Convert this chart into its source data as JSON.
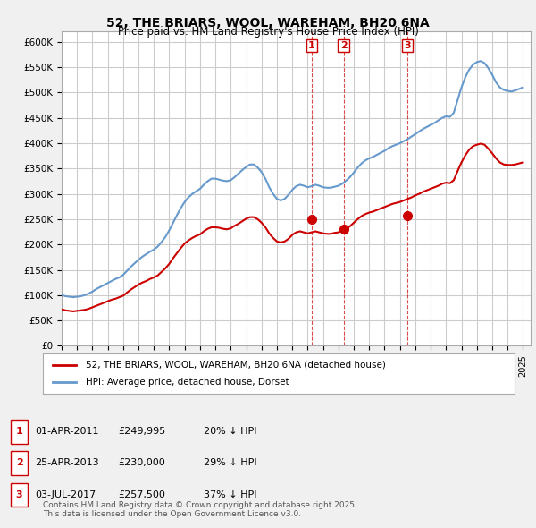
{
  "title": "52, THE BRIARS, WOOL, WAREHAM, BH20 6NA",
  "subtitle": "Price paid vs. HM Land Registry's House Price Index (HPI)",
  "ylabel_ticks": [
    "£0",
    "£50K",
    "£100K",
    "£150K",
    "£200K",
    "£250K",
    "£300K",
    "£350K",
    "£400K",
    "£450K",
    "£500K",
    "£550K",
    "£600K"
  ],
  "ylim": [
    0,
    620000
  ],
  "xlim_start": 1995.0,
  "xlim_end": 2025.5,
  "background_color": "#f0f0f0",
  "plot_bg_color": "#ffffff",
  "grid_color": "#cccccc",
  "red_line_color": "#cc0000",
  "blue_line_color": "#6699cc",
  "hpi_x": [
    1995.0,
    1995.25,
    1995.5,
    1995.75,
    1996.0,
    1996.25,
    1996.5,
    1996.75,
    1997.0,
    1997.25,
    1997.5,
    1997.75,
    1998.0,
    1998.25,
    1998.5,
    1998.75,
    1999.0,
    1999.25,
    1999.5,
    1999.75,
    2000.0,
    2000.25,
    2000.5,
    2000.75,
    2001.0,
    2001.25,
    2001.5,
    2001.75,
    2002.0,
    2002.25,
    2002.5,
    2002.75,
    2003.0,
    2003.25,
    2003.5,
    2003.75,
    2004.0,
    2004.25,
    2004.5,
    2004.75,
    2005.0,
    2005.25,
    2005.5,
    2005.75,
    2006.0,
    2006.25,
    2006.5,
    2006.75,
    2007.0,
    2007.25,
    2007.5,
    2007.75,
    2008.0,
    2008.25,
    2008.5,
    2008.75,
    2009.0,
    2009.25,
    2009.5,
    2009.75,
    2010.0,
    2010.25,
    2010.5,
    2010.75,
    2011.0,
    2011.25,
    2011.5,
    2011.75,
    2012.0,
    2012.25,
    2012.5,
    2012.75,
    2013.0,
    2013.25,
    2013.5,
    2013.75,
    2014.0,
    2014.25,
    2014.5,
    2014.75,
    2015.0,
    2015.25,
    2015.5,
    2015.75,
    2016.0,
    2016.25,
    2016.5,
    2016.75,
    2017.0,
    2017.25,
    2017.5,
    2017.75,
    2018.0,
    2018.25,
    2018.5,
    2018.75,
    2019.0,
    2019.25,
    2019.5,
    2019.75,
    2020.0,
    2020.25,
    2020.5,
    2020.75,
    2021.0,
    2021.25,
    2021.5,
    2021.75,
    2022.0,
    2022.25,
    2022.5,
    2022.75,
    2023.0,
    2023.25,
    2023.5,
    2023.75,
    2024.0,
    2024.25,
    2024.5,
    2024.75,
    2025.0
  ],
  "hpi_y": [
    100000,
    98000,
    97000,
    96000,
    97000,
    98000,
    100000,
    103000,
    107000,
    112000,
    116000,
    120000,
    124000,
    128000,
    132000,
    135000,
    140000,
    148000,
    156000,
    163000,
    170000,
    176000,
    181000,
    186000,
    190000,
    196000,
    205000,
    215000,
    228000,
    243000,
    258000,
    272000,
    284000,
    293000,
    300000,
    305000,
    310000,
    318000,
    325000,
    330000,
    330000,
    328000,
    326000,
    325000,
    327000,
    333000,
    340000,
    347000,
    353000,
    358000,
    358000,
    352000,
    343000,
    330000,
    313000,
    300000,
    290000,
    287000,
    290000,
    298000,
    308000,
    315000,
    318000,
    316000,
    313000,
    315000,
    318000,
    316000,
    313000,
    312000,
    312000,
    314000,
    316000,
    320000,
    326000,
    333000,
    342000,
    352000,
    360000,
    366000,
    370000,
    373000,
    377000,
    381000,
    385000,
    390000,
    394000,
    397000,
    400000,
    404000,
    408000,
    413000,
    418000,
    423000,
    428000,
    432000,
    436000,
    440000,
    445000,
    450000,
    453000,
    452000,
    460000,
    485000,
    510000,
    530000,
    545000,
    555000,
    560000,
    562000,
    558000,
    548000,
    535000,
    520000,
    510000,
    505000,
    503000,
    502000,
    504000,
    507000,
    510000
  ],
  "red_x": [
    1995.0,
    1995.25,
    1995.5,
    1995.75,
    1996.0,
    1996.25,
    1996.5,
    1996.75,
    1997.0,
    1997.25,
    1997.5,
    1997.75,
    1998.0,
    1998.25,
    1998.5,
    1998.75,
    1999.0,
    1999.25,
    1999.5,
    1999.75,
    2000.0,
    2000.25,
    2000.5,
    2000.75,
    2001.0,
    2001.25,
    2001.5,
    2001.75,
    2002.0,
    2002.25,
    2002.5,
    2002.75,
    2003.0,
    2003.25,
    2003.5,
    2003.75,
    2004.0,
    2004.25,
    2004.5,
    2004.75,
    2005.0,
    2005.25,
    2005.5,
    2005.75,
    2006.0,
    2006.25,
    2006.5,
    2006.75,
    2007.0,
    2007.25,
    2007.5,
    2007.75,
    2008.0,
    2008.25,
    2008.5,
    2008.75,
    2009.0,
    2009.25,
    2009.5,
    2009.75,
    2010.0,
    2010.25,
    2010.5,
    2010.75,
    2011.0,
    2011.25,
    2011.5,
    2011.75,
    2012.0,
    2012.25,
    2012.5,
    2012.75,
    2013.0,
    2013.25,
    2013.5,
    2013.75,
    2014.0,
    2014.25,
    2014.5,
    2014.75,
    2015.0,
    2015.25,
    2015.5,
    2015.75,
    2016.0,
    2016.25,
    2016.5,
    2016.75,
    2017.0,
    2017.25,
    2017.5,
    2017.75,
    2018.0,
    2018.25,
    2018.5,
    2018.75,
    2019.0,
    2019.25,
    2019.5,
    2019.75,
    2020.0,
    2020.25,
    2020.5,
    2020.75,
    2021.0,
    2021.25,
    2021.5,
    2021.75,
    2022.0,
    2022.25,
    2022.5,
    2022.75,
    2023.0,
    2023.25,
    2023.5,
    2023.75,
    2024.0,
    2024.25,
    2024.5,
    2024.75,
    2025.0
  ],
  "red_y": [
    72000,
    70000,
    69000,
    68000,
    69000,
    70000,
    71000,
    73000,
    76000,
    79000,
    82000,
    85000,
    88000,
    91000,
    93000,
    96000,
    99000,
    105000,
    111000,
    116000,
    121000,
    125000,
    128000,
    132000,
    135000,
    139000,
    146000,
    153000,
    162000,
    173000,
    183000,
    193000,
    202000,
    208000,
    213000,
    217000,
    220000,
    226000,
    231000,
    234000,
    234000,
    233000,
    231000,
    230000,
    232000,
    237000,
    241000,
    246000,
    251000,
    254000,
    254000,
    250000,
    243000,
    234000,
    222000,
    213000,
    206000,
    204000,
    206000,
    211000,
    219000,
    224000,
    226000,
    224000,
    222000,
    224000,
    226000,
    224000,
    222000,
    221000,
    221000,
    223000,
    224000,
    228000,
    231000,
    236000,
    243000,
    250000,
    256000,
    260000,
    263000,
    265000,
    268000,
    271000,
    274000,
    277000,
    280000,
    282000,
    284000,
    287000,
    290000,
    293000,
    297000,
    300000,
    304000,
    307000,
    310000,
    313000,
    316000,
    320000,
    322000,
    321000,
    327000,
    345000,
    362000,
    376000,
    387000,
    394000,
    397000,
    399000,
    397000,
    389000,
    380000,
    370000,
    362000,
    358000,
    357000,
    357000,
    358000,
    360000,
    362000
  ],
  "sale1_x": 2011.25,
  "sale1_y": 249995,
  "sale1_label": "1",
  "sale2_x": 2013.33,
  "sale2_y": 230000,
  "sale2_label": "2",
  "sale3_x": 2017.5,
  "sale3_y": 257500,
  "sale3_label": "3",
  "legend_label_red": "52, THE BRIARS, WOOL, WAREHAM, BH20 6NA (detached house)",
  "legend_label_blue": "HPI: Average price, detached house, Dorset",
  "table_data": [
    {
      "num": "1",
      "date": "01-APR-2011",
      "price": "£249,995",
      "pct": "20% ↓ HPI"
    },
    {
      "num": "2",
      "date": "25-APR-2013",
      "price": "£230,000",
      "pct": "29% ↓ HPI"
    },
    {
      "num": "3",
      "date": "03-JUL-2017",
      "price": "£257,500",
      "pct": "37% ↓ HPI"
    }
  ],
  "footer": "Contains HM Land Registry data © Crown copyright and database right 2025.\nThis data is licensed under the Open Government Licence v3.0."
}
